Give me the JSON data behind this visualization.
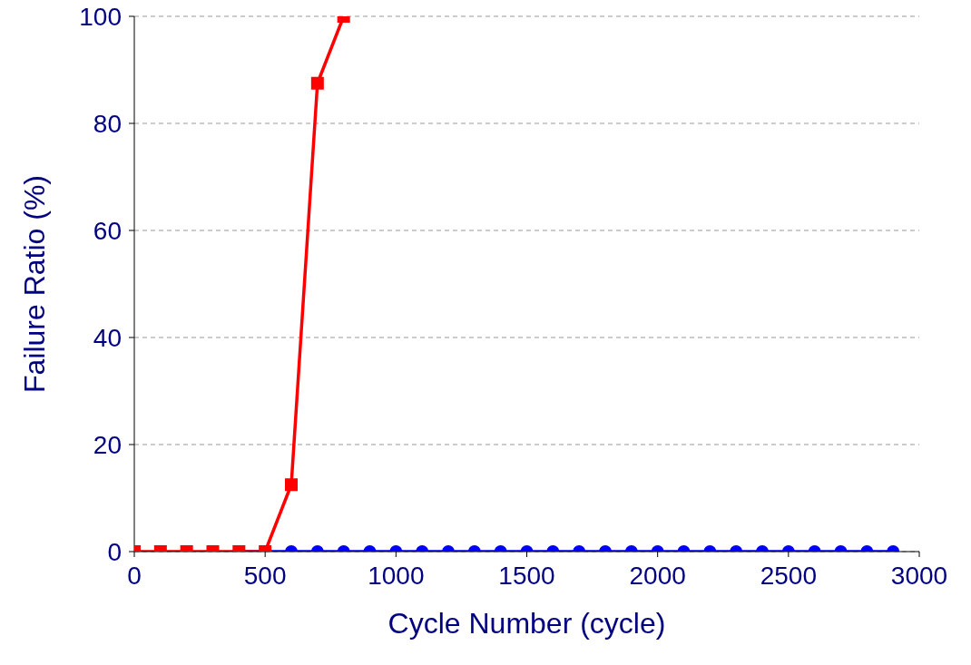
{
  "chart_data": {
    "type": "line",
    "xlabel": "Cycle Number (cycle)",
    "ylabel": "Failure Ratio (%)",
    "xlim": [
      0,
      3000
    ],
    "xticks": [
      0,
      500,
      1000,
      1500,
      2000,
      2500,
      3000
    ],
    "ylim": [
      0,
      100
    ],
    "yticks": [
      0,
      20,
      40,
      60,
      80,
      100
    ],
    "grid": "y",
    "line_style": "solid",
    "series": [
      {
        "color": "#0000ff",
        "marker": "circle",
        "x": [
          400,
          500,
          600,
          700,
          800,
          900,
          1000,
          1100,
          1200,
          1300,
          1400,
          1500,
          1600,
          1700,
          1800,
          1900,
          2000,
          2100,
          2200,
          2300,
          2400,
          2500,
          2600,
          2700,
          2800,
          2900
        ],
        "values": [
          0,
          0,
          0,
          0,
          0,
          0,
          0,
          0,
          0,
          0,
          0,
          0,
          0,
          0,
          0,
          0,
          0,
          0,
          0,
          0,
          0,
          0,
          0,
          0,
          0,
          0
        ]
      },
      {
        "color": "#ff0000",
        "marker": "square",
        "x": [
          0,
          100,
          200,
          300,
          400,
          500,
          600,
          700,
          800
        ],
        "values": [
          0,
          0,
          0,
          0,
          0,
          0,
          12.5,
          87.5,
          100
        ]
      }
    ]
  }
}
